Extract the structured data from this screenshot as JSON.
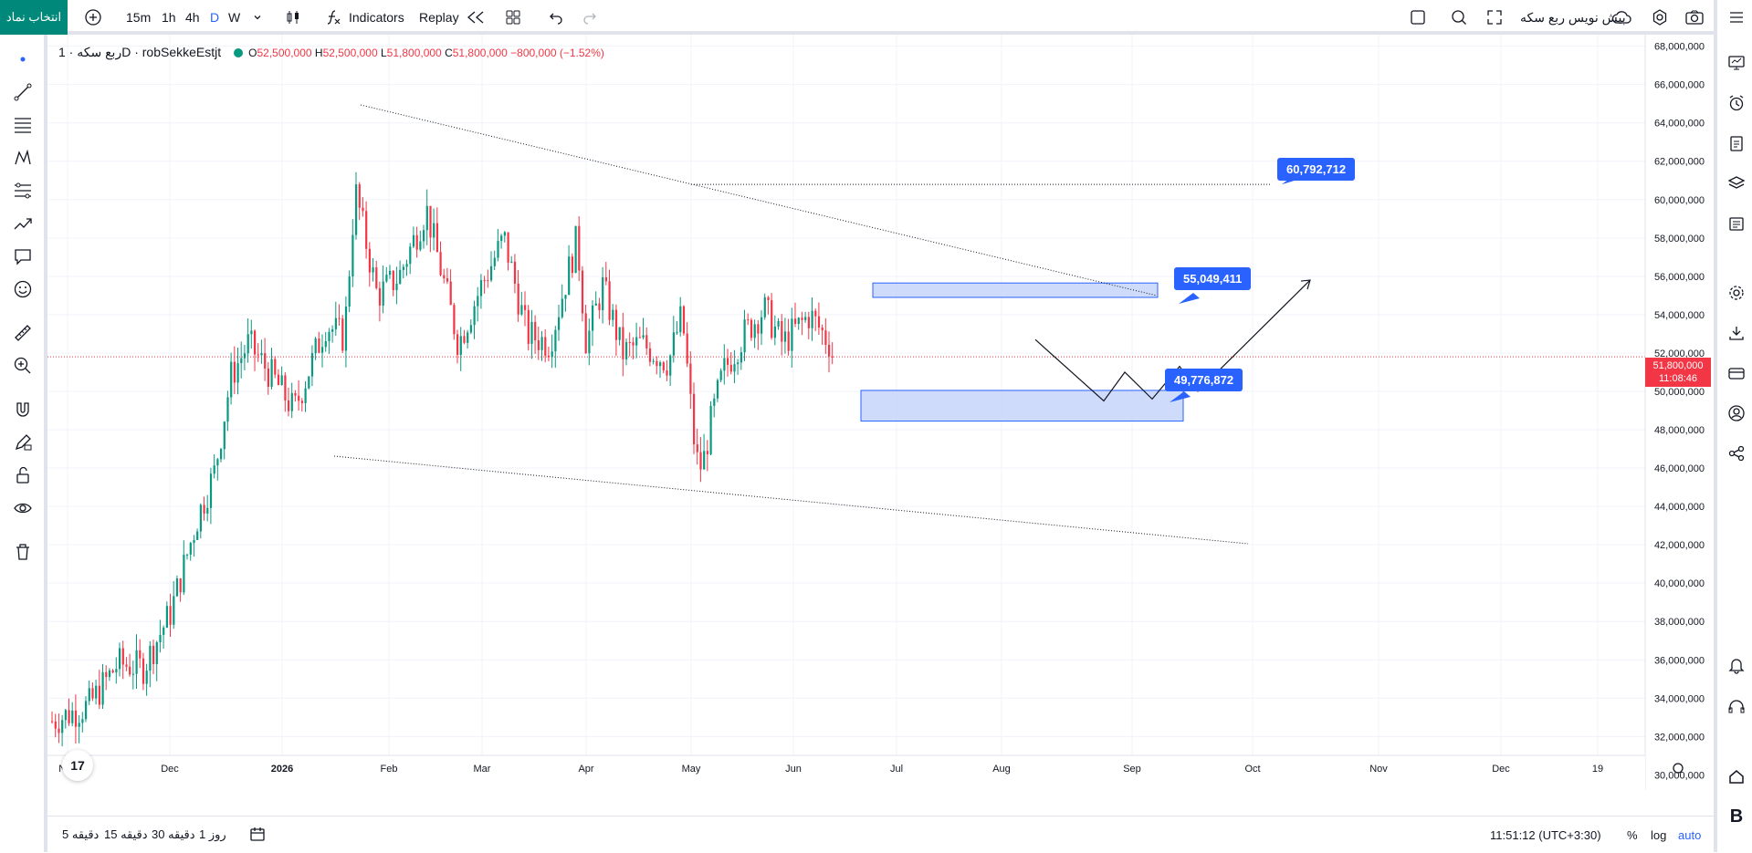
{
  "toolbar": {
    "symbol_button": "انتخاب نماد",
    "intervals": [
      "15m",
      "1h",
      "4h",
      "D",
      "W"
    ],
    "active_interval": "D",
    "indicators_label": "Indicators",
    "replay_label": "Replay",
    "symbol_search_text": "پیش نویس ربع سکه"
  },
  "legend": {
    "symbol_name": "ربع سکه · 1D · robSekkeEstjt",
    "open_label": "O",
    "open": "52,500,000",
    "high_label": "H",
    "high": "52,500,000",
    "low_label": "L",
    "low": "51,800,000",
    "close_label": "C",
    "close": "51,800,000",
    "change": "−800,000 (−1.52%)"
  },
  "price_axis": {
    "labels": [
      "68,000,000",
      "66,000,000",
      "64,000,000",
      "62,000,000",
      "60,000,000",
      "58,000,000",
      "56,000,000",
      "54,000,000",
      "52,000,000",
      "50,000,000",
      "48,000,000",
      "46,000,000",
      "44,000,000",
      "42,000,000",
      "40,000,000",
      "38,000,000",
      "36,000,000",
      "34,000,000",
      "32,000,000",
      "30,000,000"
    ],
    "last_price": "51,800,000",
    "countdown": "11:08:46"
  },
  "time_axis": {
    "labels": [
      "Nov",
      "Dec",
      "2026",
      "Feb",
      "Mar",
      "Apr",
      "May",
      "Jun",
      "Jul",
      "Aug",
      "Sep",
      "Oct",
      "Nov",
      "Dec",
      "19"
    ],
    "bold": [
      "2026"
    ]
  },
  "callouts": {
    "upper": "60,792,712",
    "middle": "55,049,411",
    "lower": "49,776,872"
  },
  "bottombar": {
    "ranges": [
      "5 دقیقه",
      "15 دقیقه",
      "30 دقیقه",
      "1 روز"
    ],
    "time": "11:51:12 (UTC+3:30)",
    "percent_label": "%",
    "log_label": "log",
    "auto_label": "auto"
  },
  "logo_text": "17",
  "right_bottom_letter": "B",
  "colors": {
    "up": "#089981",
    "down": "#f23645",
    "accent": "#2962ff",
    "symbol_button": "#00897b",
    "zone_fill": "#c5d5f9",
    "zone_border": "#2962ff"
  },
  "chart_data": {
    "type": "candlestick",
    "y_range": [
      29400000,
      68600000
    ],
    "annotations": {
      "horizontal_level": 60792712,
      "zones": [
        {
          "from": 54900000,
          "to": 55650000
        },
        {
          "from": 48450000,
          "to": 50050000
        }
      ],
      "projected_path": [
        52700000,
        49500000,
        51000000,
        49600000,
        51300000,
        50000000,
        55800000
      ]
    }
  }
}
